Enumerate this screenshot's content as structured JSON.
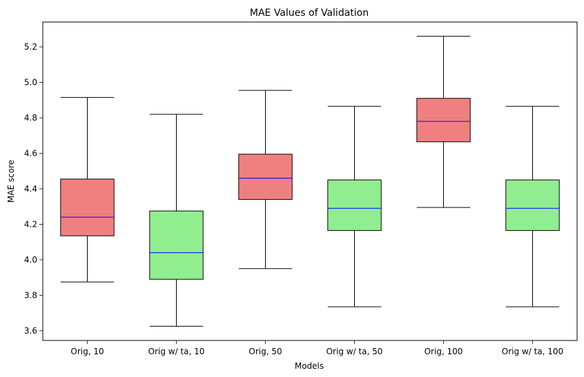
{
  "chart_data": {
    "type": "box",
    "title": "MAE Values of Validation",
    "xlabel": "Models",
    "ylabel": "MAE score",
    "ylim": [
      3.545,
      5.34
    ],
    "yticks": [
      3.6,
      3.8,
      4.0,
      4.2,
      4.4,
      4.6,
      4.8,
      5.0,
      5.2
    ],
    "ytick_labels": [
      "3.6",
      "3.8",
      "4.0",
      "4.2",
      "4.4",
      "4.6",
      "4.8",
      "5.0",
      "5.2"
    ],
    "grid": false,
    "median_color": "#0000ff",
    "edge_color": "#000000",
    "boxes": [
      {
        "label": "Orig, 10",
        "whisker_low": 3.875,
        "q1": 4.135,
        "median": 4.24,
        "q3": 4.455,
        "whisker_high": 4.915,
        "color": "#f08080"
      },
      {
        "label": "Orig w/ ta, 10",
        "whisker_low": 3.625,
        "q1": 3.89,
        "median": 4.04,
        "q3": 4.275,
        "whisker_high": 4.82,
        "color": "#90ee90"
      },
      {
        "label": "Orig, 50",
        "whisker_low": 3.95,
        "q1": 4.34,
        "median": 4.46,
        "q3": 4.595,
        "whisker_high": 4.955,
        "color": "#f08080"
      },
      {
        "label": "Orig w/ ta, 50",
        "whisker_low": 3.735,
        "q1": 4.165,
        "median": 4.29,
        "q3": 4.45,
        "whisker_high": 4.865,
        "color": "#90ee90"
      },
      {
        "label": "Orig, 100",
        "whisker_low": 4.295,
        "q1": 4.665,
        "median": 4.78,
        "q3": 4.91,
        "whisker_high": 5.26,
        "color": "#f08080"
      },
      {
        "label": "Orig w/ ta, 100",
        "whisker_low": 3.735,
        "q1": 4.165,
        "median": 4.29,
        "q3": 4.45,
        "whisker_high": 4.865,
        "color": "#90ee90"
      }
    ]
  }
}
